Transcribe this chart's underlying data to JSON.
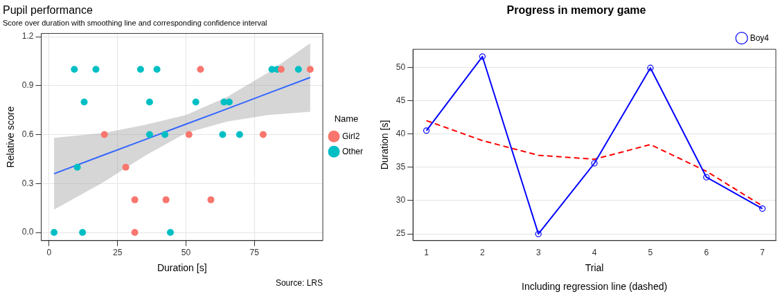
{
  "chart_data": [
    {
      "type": "scatter",
      "title": "Pupil performance",
      "subtitle": "Score over duration with smoothing line and corresponding confidence interval",
      "xlabel": "Duration [s]",
      "ylabel": "Relative score",
      "legend_title": "Name",
      "legend": "right",
      "grid": true,
      "marker": "circle",
      "xlim": [
        -2.9,
        100
      ],
      "xticks": [
        0,
        25,
        50,
        75
      ],
      "ylim": [
        -0.05,
        1.22
      ],
      "yticks": [
        {
          "value": 0,
          "label": "0.0"
        },
        {
          "value": 0.3,
          "label": "0.3"
        },
        {
          "value": 0.6,
          "label": "0.6"
        },
        {
          "value": 0.9,
          "label": "0.9"
        },
        {
          "value": 1.2,
          "label": "1.2"
        }
      ],
      "series": [
        {
          "name": "Girl2",
          "color": "#f8766d",
          "x": [
            55.3,
            84.8,
            95.4,
            20.2,
            51.1,
            78.2,
            28.0,
            31.3,
            42.7,
            59.1,
            31.3
          ],
          "values": [
            1.0,
            1.0,
            1.0,
            0.6,
            0.6,
            0.6,
            0.4,
            0.2,
            0.2,
            0.2,
            0.0
          ]
        },
        {
          "name": "Other",
          "color": "#00bfc4",
          "x": [
            9.2,
            17.1,
            33.4,
            39.4,
            81.4,
            83.3,
            91.1,
            12.8,
            36.7,
            53.6,
            63.9,
            65.8,
            36.7,
            42.3,
            63.4,
            69.6,
            10.3,
            1.8,
            12.2,
            44.3
          ],
          "values": [
            1.0,
            1.0,
            1.0,
            1.0,
            1.0,
            1.0,
            1.0,
            0.8,
            0.8,
            0.8,
            0.8,
            0.8,
            0.6,
            0.6,
            0.6,
            0.6,
            0.4,
            0.0,
            0.0,
            0.0
          ]
        },
        {
          "type": "line",
          "color": "#3366ff",
          "marker": "none",
          "x": [
            1.8,
            20,
            35,
            50,
            65,
            80,
            95.4
          ],
          "values": [
            0.36,
            0.475,
            0.569,
            0.664,
            0.758,
            0.853,
            0.95
          ],
          "lower": [
            0.14,
            0.31,
            0.47,
            0.61,
            0.68,
            0.72,
            0.74
          ],
          "upper": [
            0.58,
            0.61,
            0.66,
            0.72,
            0.83,
            0.98,
            1.16
          ]
        }
      ],
      "annotations": [
        "Source: LRS"
      ]
    },
    {
      "type": "line",
      "title": "Progress in memory game",
      "xlabel": "Trial",
      "ylabel": "Duration [s]",
      "legend": "top right",
      "grid": "y",
      "xlim": [
        0.76,
        7.24
      ],
      "xticks": [
        1,
        2,
        3,
        4,
        5,
        6,
        7
      ],
      "ylim": [
        24,
        52.7
      ],
      "yticks": [
        25,
        30,
        35,
        40,
        45,
        50
      ],
      "series": [
        {
          "name": "Boy4",
          "color": "#0000ff",
          "marker": "circle",
          "line_style": "solid",
          "x": [
            1,
            2,
            3,
            4,
            5,
            6,
            7
          ],
          "values": [
            40.5,
            51.6,
            25.0,
            35.6,
            49.9,
            33.5,
            28.8
          ]
        },
        {
          "color": "#ff0000",
          "marker": "none",
          "line_style": "dashed",
          "x": [
            1,
            2,
            3,
            4,
            5,
            6,
            7
          ],
          "values": [
            42.0,
            39.0,
            36.8,
            36.2,
            38.4,
            34.4,
            29.2
          ]
        }
      ],
      "annotations": [
        "Including regression line (dashed)"
      ]
    }
  ]
}
